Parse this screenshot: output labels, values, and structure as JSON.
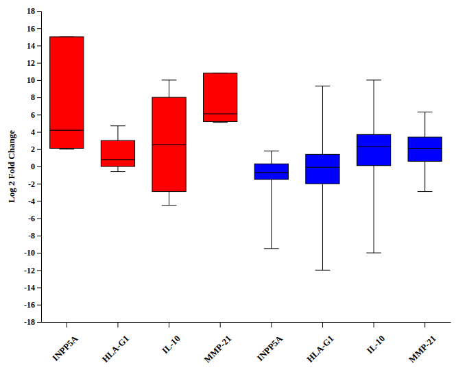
{
  "chart_data": {
    "type": "box",
    "y_label": "Log 2 Fold Change",
    "categories": [
      "INPP5A",
      "HLA-G1",
      "IL-10",
      "MMP-21",
      "INPP5A",
      "HLA-G1",
      "IL-10",
      "MMP-21"
    ],
    "min": [
      2.0,
      -0.6,
      -4.5,
      5.1,
      -9.5,
      -12.0,
      -10.0,
      -2.9
    ],
    "q1": [
      2.1,
      0.0,
      -2.9,
      5.2,
      -1.5,
      -2.0,
      0.1,
      0.6
    ],
    "median": [
      4.2,
      0.8,
      2.5,
      6.1,
      -0.7,
      -0.1,
      2.3,
      2.1
    ],
    "q3": [
      15.0,
      3.0,
      8.0,
      10.8,
      0.3,
      1.4,
      3.7,
      3.4
    ],
    "max": [
      15.0,
      4.7,
      10.0,
      10.8,
      1.8,
      9.3,
      10.0,
      6.3
    ],
    "colors": [
      "#ff0000",
      "#ff0000",
      "#ff0000",
      "#ff0000",
      "#0000ff",
      "#0000ff",
      "#0000ff",
      "#0000ff"
    ],
    "ylim": [
      -18,
      18
    ],
    "yticks": [
      -18,
      -16,
      -14,
      -12,
      -10,
      -8,
      -6,
      -4,
      -2,
      0,
      2,
      4,
      6,
      8,
      10,
      12,
      14,
      16,
      18
    ],
    "grid": false
  }
}
